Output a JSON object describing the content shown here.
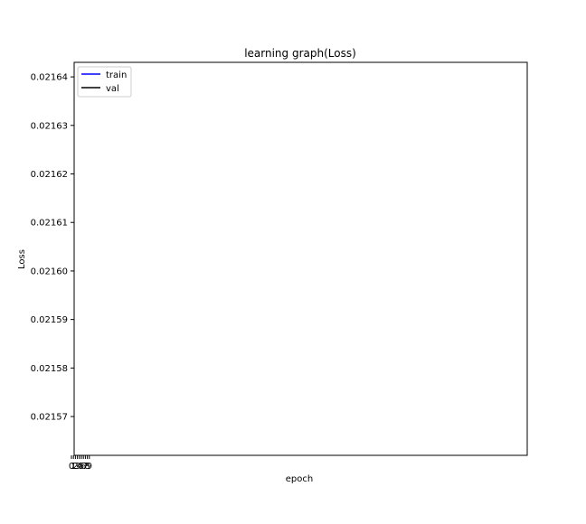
{
  "chart_data": {
    "type": "line",
    "title": "learning graph(Loss)",
    "xlabel": "epoch",
    "ylabel": "Loss",
    "ylim": [
      0.021562,
      0.021643
    ],
    "y_ticks": [
      0.02157,
      0.02158,
      0.02159,
      0.0216,
      0.02161,
      0.02162,
      0.02163,
      0.02164
    ],
    "y_tick_labels": [
      "0.02157",
      "0.02158",
      "0.02159",
      "0.02160",
      "0.02161",
      "0.02162",
      "0.02163",
      "0.02164"
    ],
    "x_tick_labels": [
      "0",
      "1",
      "2",
      "3",
      "4",
      "5",
      "6",
      "7",
      "8",
      "9"
    ],
    "grid": false,
    "legend_position": "upper-left",
    "series": [
      {
        "name": "train",
        "color": "#0000ff",
        "x": [],
        "y": []
      },
      {
        "name": "val",
        "color": "#000000",
        "x": [],
        "y": []
      }
    ]
  }
}
